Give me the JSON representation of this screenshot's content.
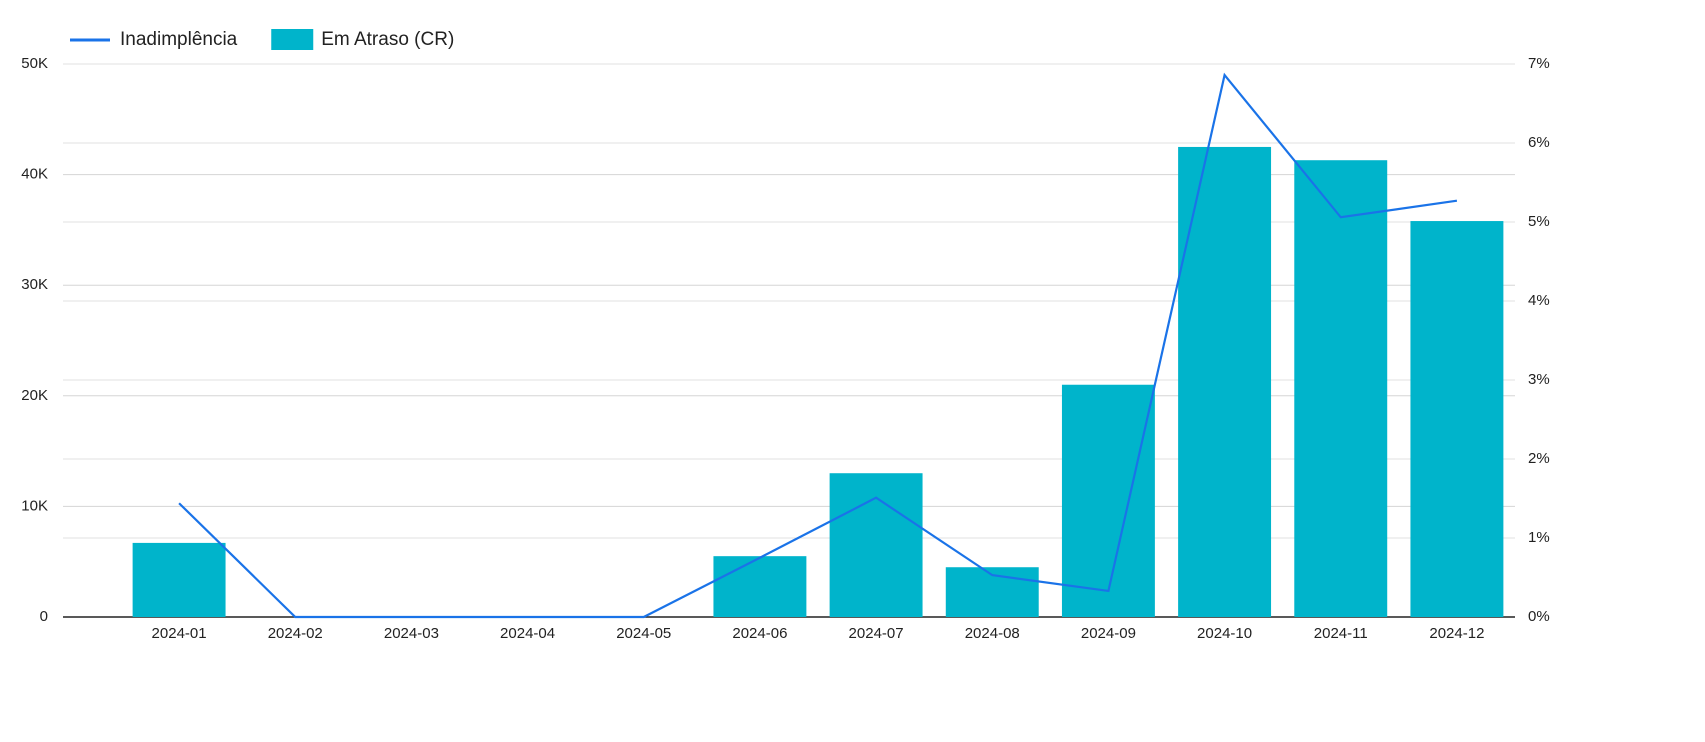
{
  "chart_data": {
    "type": "bar-line",
    "categories": [
      "2024-01",
      "2024-02",
      "2024-03",
      "2024-04",
      "2024-05",
      "2024-06",
      "2024-07",
      "2024-08",
      "2024-09",
      "2024-10",
      "2024-11",
      "2024-12"
    ],
    "series": [
      {
        "name": "Em Atraso (CR)",
        "type": "bar",
        "color": "#00b4cb",
        "values": [
          6700,
          0,
          0,
          0,
          0,
          5500,
          13000,
          4500,
          21000,
          42500,
          41300,
          35800
        ]
      },
      {
        "name": "Inadimplência",
        "type": "line",
        "axis": "y2",
        "color": "#1a73e8",
        "values": [
          1.44,
          0,
          0,
          0,
          0,
          0.75,
          1.51,
          0.53,
          0.33,
          6.86,
          5.06,
          5.27
        ]
      }
    ],
    "ylim": [
      0,
      50000
    ],
    "yticks": [
      0,
      {
        "value": 10000,
        "label": "10K"
      },
      {
        "value": 20000,
        "label": "20K"
      },
      {
        "value": 30000,
        "label": "30K"
      },
      {
        "value": 40000,
        "label": "40K"
      },
      {
        "value": 50000,
        "label": "50K"
      }
    ],
    "y2lim": [
      0,
      7
    ],
    "y2ticks": [
      {
        "value": 0,
        "label": "0%"
      },
      {
        "value": 1,
        "label": "1%"
      },
      {
        "value": 2,
        "label": "2%"
      },
      {
        "value": 3,
        "label": "3%"
      },
      {
        "value": 4,
        "label": "4%"
      },
      {
        "value": 5,
        "label": "5%"
      },
      {
        "value": 6,
        "label": "6%"
      },
      {
        "value": 7,
        "label": "7%"
      }
    ],
    "grid": true,
    "legend": "top-left"
  }
}
